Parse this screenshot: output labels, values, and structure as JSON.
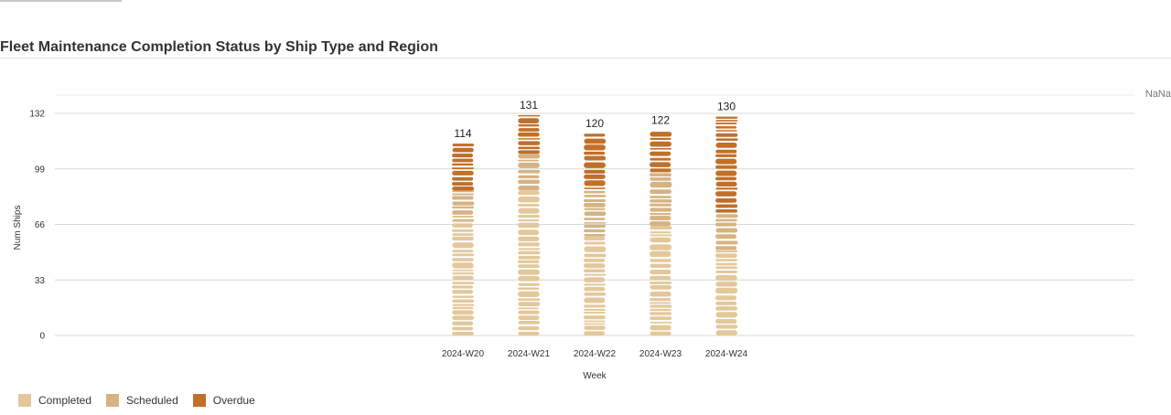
{
  "page": {
    "title": "Fleet Maintenance Completion Status by Ship Type and Region",
    "corner_text": "NaNa"
  },
  "colors": {
    "completed": "#e3c89c",
    "scheduled": "#d6b383",
    "overdue": "#c0702a",
    "grid": "#d8d8d8",
    "axis_text": "#333333"
  },
  "chart_data": {
    "type": "bar",
    "stacked": true,
    "title": "Fleet Maintenance Completion Status by Ship Type and Region",
    "xlabel": "Week",
    "ylabel": "Num Ships",
    "ylim": [
      0,
      132
    ],
    "yticks": [
      0,
      33,
      66,
      99,
      132
    ],
    "categories": [
      "2024-W20",
      "2024-W21",
      "2024-W22",
      "2024-W23",
      "2024-W24"
    ],
    "totals": [
      114,
      131,
      120,
      122,
      130
    ],
    "series": [
      {
        "name": "Completed",
        "values": [
          68,
          86,
          59,
          65,
          51
        ]
      },
      {
        "name": "Scheduled",
        "values": [
          18,
          22,
          28,
          32,
          22
        ]
      },
      {
        "name": "Overdue",
        "values": [
          28,
          23,
          33,
          25,
          57
        ]
      }
    ],
    "grid": true,
    "legend": "bottom-left"
  },
  "legend": {
    "items": [
      "Completed",
      "Scheduled",
      "Overdue"
    ]
  }
}
